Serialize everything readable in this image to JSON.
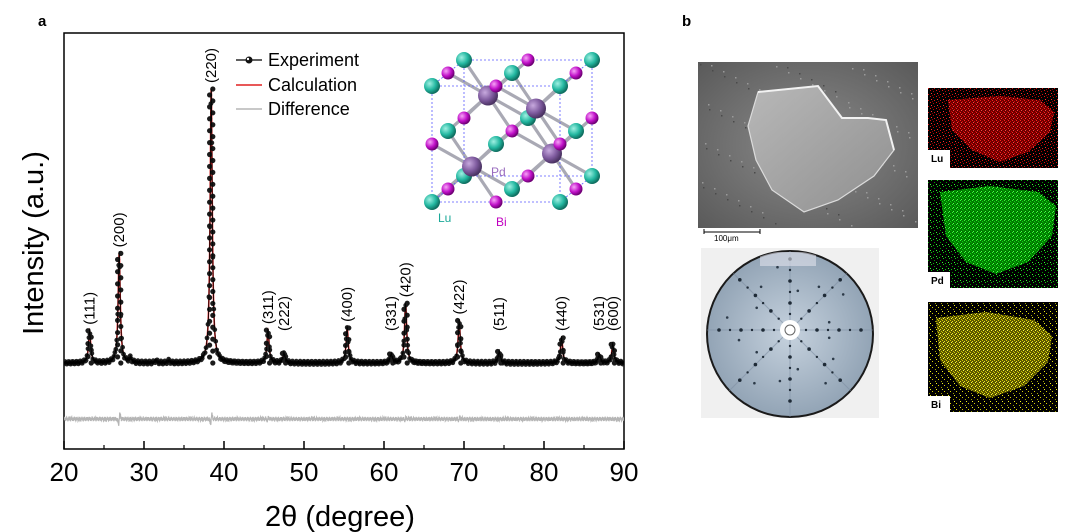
{
  "panels": {
    "a": {
      "letter": "a"
    },
    "b": {
      "letter": "b"
    }
  },
  "chart_data": {
    "type": "line",
    "xlabel": "2θ (degree)",
    "ylabel": "Intensity (a.u.)",
    "xlim": [
      20,
      90
    ],
    "x_ticks": [
      20,
      30,
      40,
      50,
      60,
      70,
      80,
      90
    ],
    "y_ticks_shown": false,
    "legend": {
      "placement": "top-right",
      "entries": [
        {
          "label": "Experiment",
          "color": "#000000",
          "style": "line-with-circle-markers"
        },
        {
          "label": "Calculation",
          "color": "#e02020",
          "style": "line"
        },
        {
          "label": "Difference",
          "color": "#b5b5b5",
          "style": "line"
        }
      ]
    },
    "series_peaks": [
      {
        "label": "(111)",
        "two_theta": 23.2,
        "rel_intensity": 0.118
      },
      {
        "label": "(200)",
        "two_theta": 26.9,
        "rel_intensity": 0.4
      },
      {
        "label": "(220)",
        "two_theta": 38.4,
        "rel_intensity": 1.0
      },
      {
        "label": "(311)",
        "two_theta": 45.5,
        "rel_intensity": 0.12
      },
      {
        "label": "(222)",
        "two_theta": 47.5,
        "rel_intensity": 0.035
      },
      {
        "label": "(400)",
        "two_theta": 55.4,
        "rel_intensity": 0.128
      },
      {
        "label": "(331)",
        "two_theta": 60.9,
        "rel_intensity": 0.033
      },
      {
        "label": "(420)",
        "two_theta": 62.7,
        "rel_intensity": 0.218
      },
      {
        "label": "(422)",
        "two_theta": 69.4,
        "rel_intensity": 0.155
      },
      {
        "label": "(511)",
        "two_theta": 74.4,
        "rel_intensity": 0.042
      },
      {
        "label": "(440)",
        "two_theta": 82.2,
        "rel_intensity": 0.092
      },
      {
        "label": "(531)",
        "two_theta": 86.9,
        "rel_intensity": 0.032
      },
      {
        "label": "(600)",
        "two_theta": 88.6,
        "rel_intensity": 0.068
      }
    ],
    "minor_peaks": [
      {
        "two_theta": 28.3,
        "rel_intensity": 0.015
      },
      {
        "two_theta": 31.5,
        "rel_intensity": 0.008
      },
      {
        "two_theta": 33.1,
        "rel_intensity": 0.007
      }
    ],
    "difference_peaks": [
      {
        "two_theta": 26.9,
        "amplitude": 0.08
      },
      {
        "two_theta": 38.4,
        "amplitude": 0.07
      },
      {
        "two_theta": 45.5,
        "amplitude": 0.02
      },
      {
        "two_theta": 62.7,
        "amplitude": 0.015
      },
      {
        "two_theta": 69.4,
        "amplitude": 0.015
      }
    ],
    "inset": {
      "type": "crystal-structure",
      "atom_labels": [
        {
          "text": "Pd",
          "color": "#9a6cbf"
        },
        {
          "text": "Lu",
          "color": "#1aa898"
        },
        {
          "text": "Bi",
          "color": "#c000c0"
        }
      ],
      "colors": {
        "Pd": "#7e5a9e",
        "Lu": "#22b7a0",
        "Bi": "#c010c8"
      }
    }
  },
  "panel_b": {
    "sem_image": {
      "scale_bar_label": "100μm"
    },
    "laue_pattern": {
      "description_visible": false
    },
    "eds_maps": [
      {
        "element": "Lu",
        "color": "#e01010"
      },
      {
        "element": "Pd",
        "color": "#10d010"
      },
      {
        "element": "Bi",
        "color": "#d8d000"
      }
    ]
  }
}
